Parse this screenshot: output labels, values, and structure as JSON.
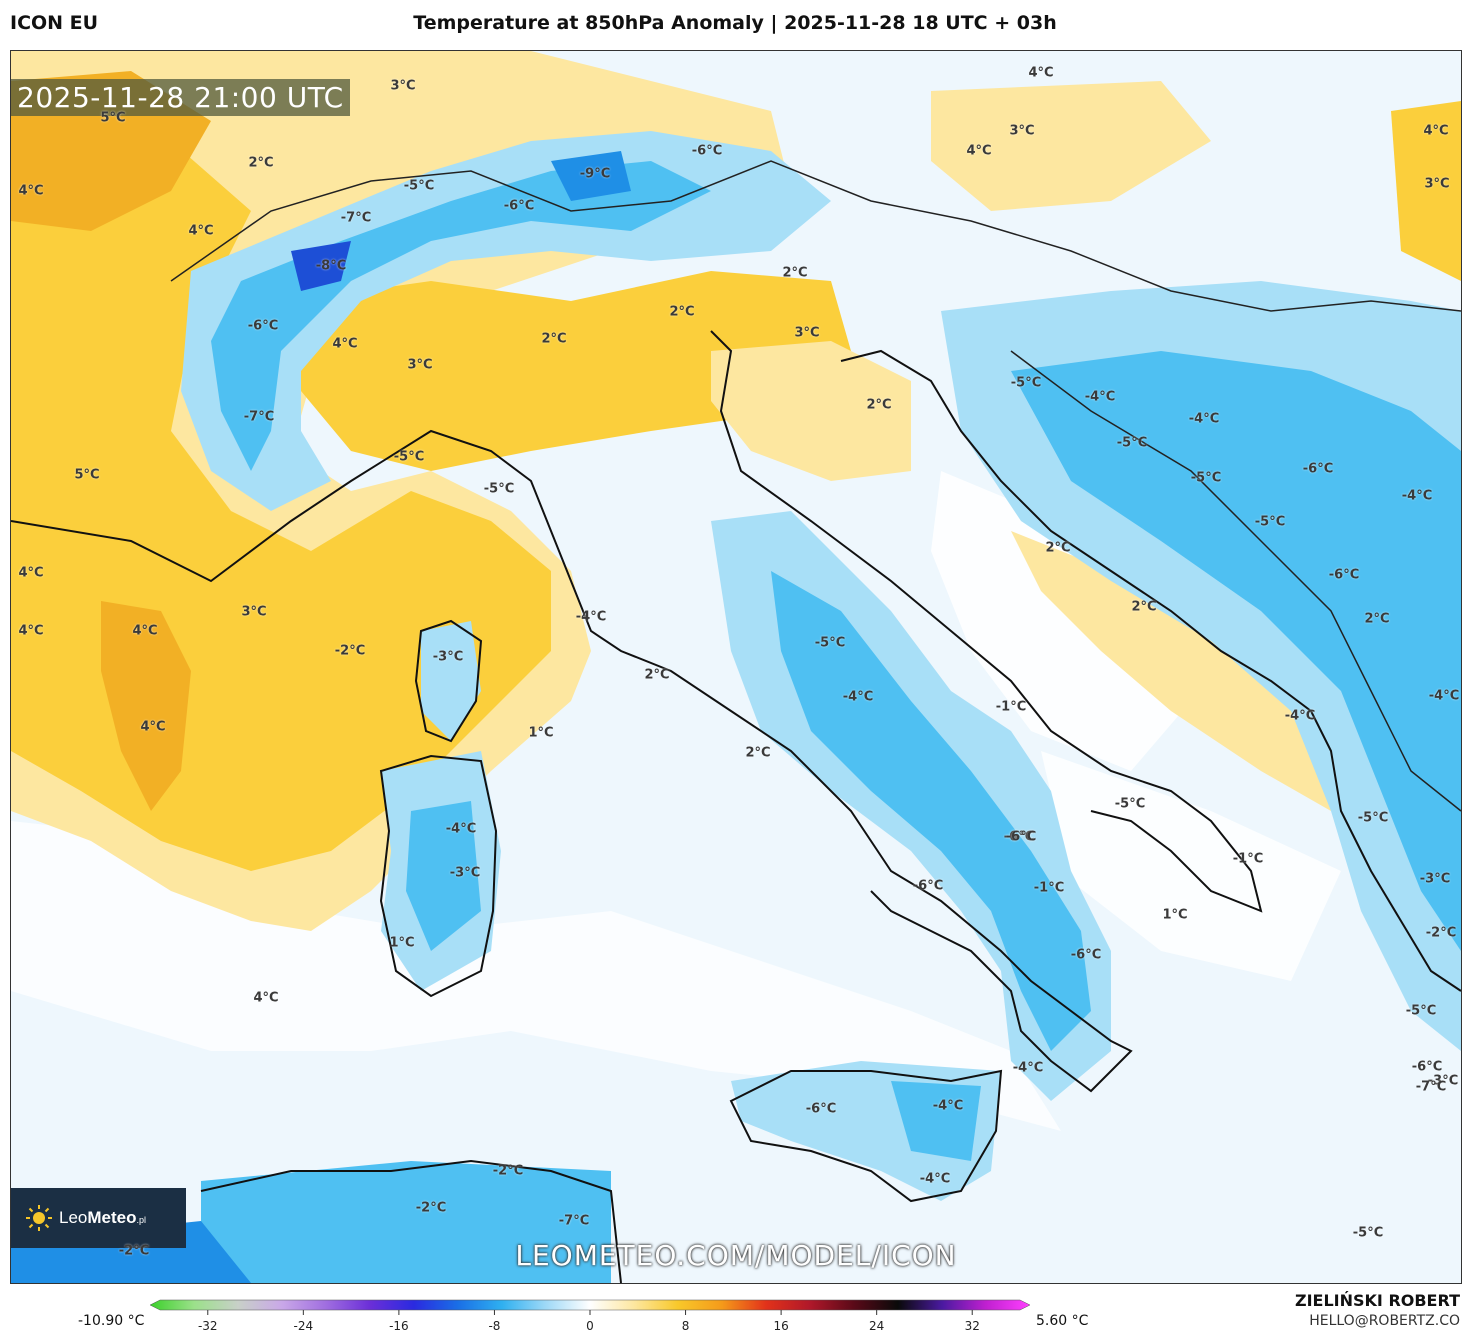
{
  "header": {
    "model": "ICON EU",
    "title": "Temperature at 850hPa Anomaly | 2025-11-28 18 UTC + 03h"
  },
  "map": {
    "timestamp": "2025-11-28 21:00 UTC",
    "watermark": "LEOMETEO.COM/MODEL/ICON",
    "logo_text_prefix": "Leo",
    "logo_text_bold": "Meteo",
    "logo_text_suffix": ".pl",
    "labels": [
      "-8°C",
      "-7°C",
      "-6°C",
      "-5°C",
      "-9°C",
      "-6°C",
      "-7°C",
      "-6°C",
      "5°C",
      "2°C",
      "4°C",
      "4°C",
      "3°C",
      "4°C",
      "3°C",
      "4°C",
      "4°C",
      "3°C",
      "4°C",
      "3°C",
      "2°C",
      "2°C",
      "2°C",
      "3°C",
      "2°C",
      "-5°C",
      "-5°C",
      "-5°C",
      "-4°C",
      "-4°C",
      "-5°C",
      "-6°C",
      "-5°C",
      "-5°C",
      "-6°C",
      "-4°C",
      "2°C",
      "2°C",
      "2°C",
      "-4°C",
      "-5°C",
      "-6°C",
      "-4°C",
      "-1°C",
      "1°C",
      "2°C",
      "2°C",
      "-4°C",
      "-3°C",
      "-4°C",
      "-3°C",
      "1°C",
      "4°C",
      "5°C",
      "4°C",
      "4°C",
      "4°C",
      "4°C",
      "3°C",
      "-2°C",
      "-5°C",
      "-6°C",
      "-1°C",
      "-1°C",
      "1°C",
      "-6°C",
      "-6°C",
      "-4°C",
      "-6°C",
      "-4°C",
      "-2°C",
      "-4°C",
      "-2°C",
      "-7°C",
      "-2°C",
      "-5°C",
      "-5°C",
      "-3°C",
      "-3°C",
      "-2°C",
      "-6°C",
      "-4°C",
      "-5°C",
      "-7°C"
    ],
    "colors": {
      "warm_light": "#fde7a0",
      "warm_mid": "#fbcf3c",
      "warm_strong": "#f2b025",
      "cold_pale": "#dff2fc",
      "cold_light": "#a8dff7",
      "cold_mid": "#4fc0f2",
      "cold_strong": "#1f8fe6",
      "cold_deep": "#1d4fd6",
      "sea_neutral": "#eef7fd"
    }
  },
  "colorbar": {
    "min_label": "-10.90 °C",
    "max_label": "5.60 °C",
    "ticks": [
      "-32",
      "-24",
      "-16",
      "-8",
      "0",
      "8",
      "16",
      "24",
      "32"
    ],
    "tick_values": [
      -32,
      -24,
      -16,
      -8,
      0,
      8,
      16,
      24,
      32
    ],
    "range": [
      -36,
      36
    ],
    "stops": [
      "#3bd02a",
      "#9be08a",
      "#c8d0c8",
      "#c9a8e8",
      "#a06ee0",
      "#6b2fd8",
      "#2a2ae0",
      "#1a6fe6",
      "#2fb0f0",
      "#9fd9f7",
      "#ffffff",
      "#fde7a0",
      "#f8c82a",
      "#f59a1a",
      "#e2321a",
      "#b0182a",
      "#5a0a18",
      "#0a0a0a",
      "#4a1aa0",
      "#c020d0",
      "#ff40ff"
    ]
  },
  "footer": {
    "author": "ZIELIŃSKI ROBERT",
    "email": "HELLO@ROBERTZ.CO"
  }
}
